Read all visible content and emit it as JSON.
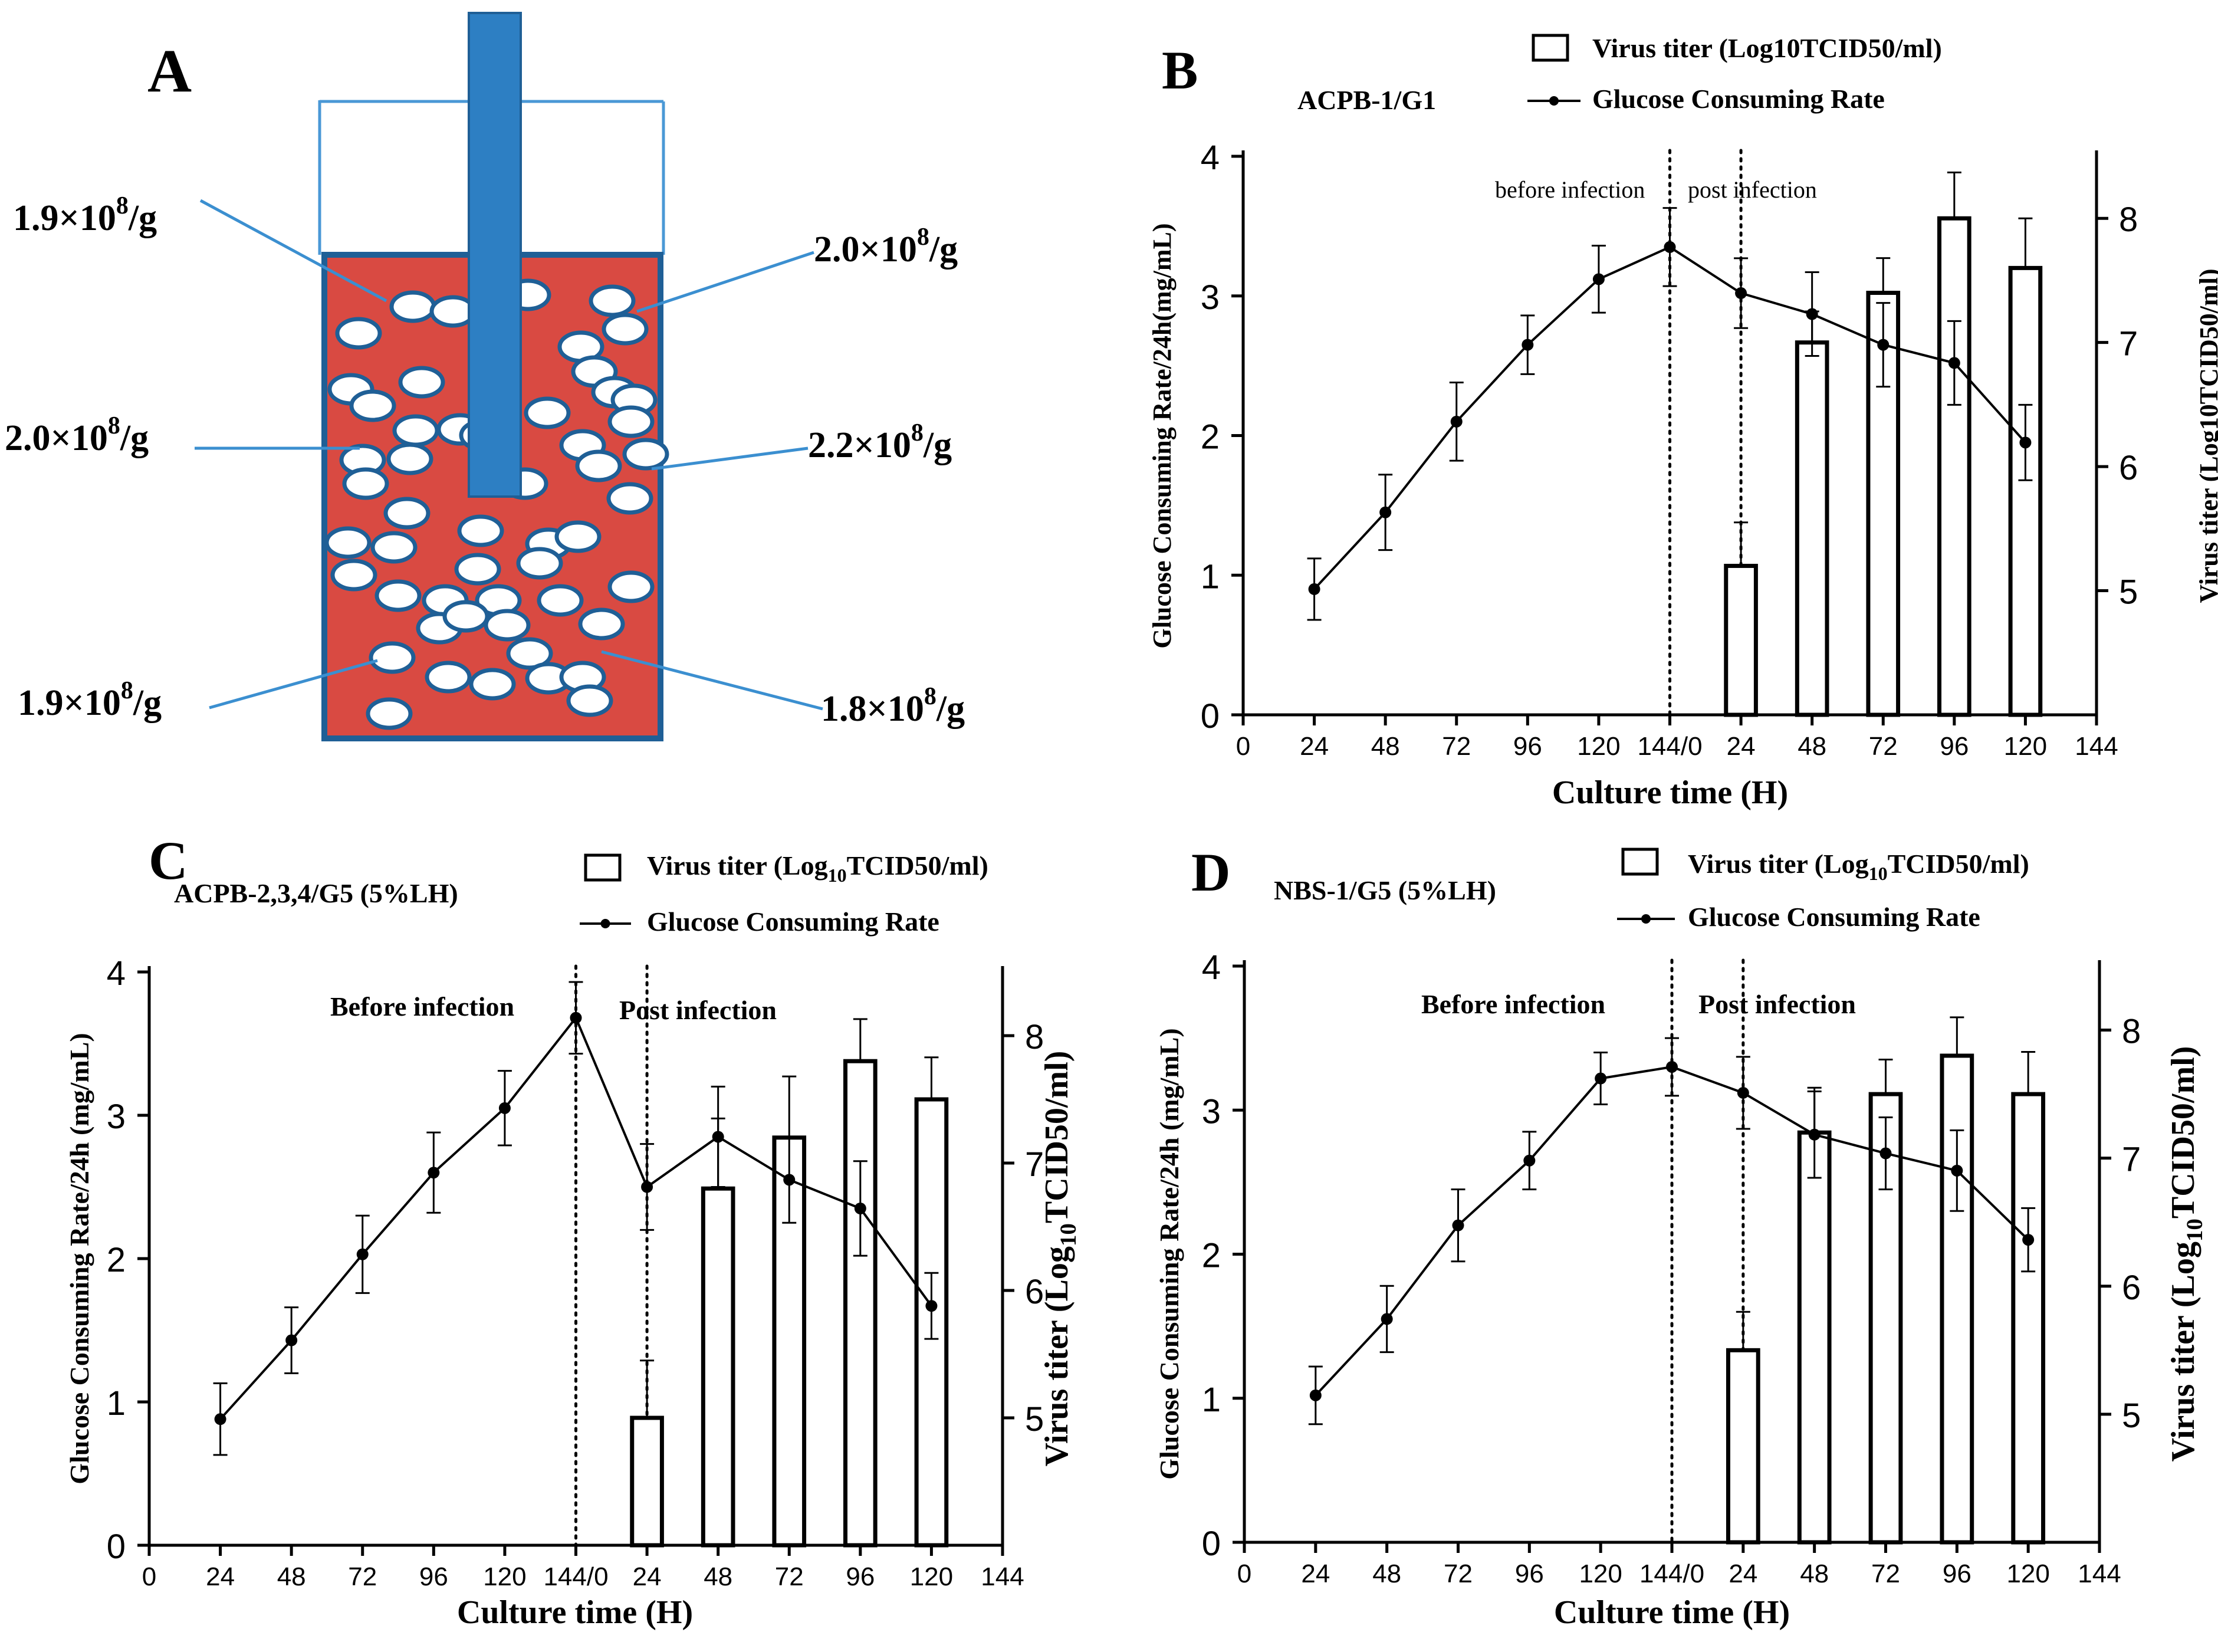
{
  "colors": {
    "reactor_fill": "#d94a42",
    "reactor_border": "#1f5f96",
    "agitator": "#2d7fc3",
    "leader": "#3b8fd0",
    "ink": "#000000"
  },
  "panel_a": {
    "label": "A",
    "annotations": [
      {
        "base": "1.9×10",
        "exp": "8",
        "unit": "/g",
        "position": "left-top"
      },
      {
        "base": "2.0×10",
        "exp": "8",
        "unit": "/g",
        "position": "left-middle"
      },
      {
        "base": "1.9×10",
        "exp": "8",
        "unit": "/g",
        "position": "left-bottom"
      },
      {
        "base": "2.0×10",
        "exp": "8",
        "unit": "/g",
        "position": "right-top"
      },
      {
        "base": "2.2×10",
        "exp": "8",
        "unit": "/g",
        "position": "right-middle"
      },
      {
        "base": "1.8×10",
        "exp": "8",
        "unit": "/g",
        "position": "right-bottom"
      }
    ]
  },
  "chart_data": [
    {
      "id": "B",
      "type": "bar+line",
      "panel_label": "B",
      "title": "ACPB-1/G1",
      "legend": {
        "bar_label": {
          "pre": "Virus titer (Log10TCID50/ml)",
          "sub": "",
          "post": ""
        },
        "line_label": "Glucose Consuming Rate",
        "placement": "top-right"
      },
      "region_labels": [
        "before infection",
        "post infection"
      ],
      "xlabel": "Culture time (H)",
      "x_ticks": [
        "0",
        "24",
        "48",
        "72",
        "96",
        "120",
        "144/0",
        "24",
        "48",
        "72",
        "96",
        "120",
        "144"
      ],
      "x_range": [
        0,
        288
      ],
      "dividers_x": [
        144,
        168
      ],
      "ylabel_left": "Glucose Consuming Rate/24h(mg/mL)",
      "ylabel_right": {
        "pre": "Virus titer (Log10TCID50/ml)",
        "sub": "",
        "post": ""
      },
      "y_left_range": [
        0,
        4
      ],
      "y_left_ticks": [
        "0",
        "1",
        "2",
        "3",
        "4"
      ],
      "y_right_range": [
        4,
        8.5
      ],
      "y_right_ticks": [
        "5",
        "6",
        "7",
        "8"
      ],
      "line": {
        "x": [
          24,
          48,
          72,
          96,
          120,
          144,
          168,
          192,
          216,
          240,
          264
        ],
        "values": [
          0.9,
          1.45,
          2.1,
          2.65,
          3.12,
          3.35,
          3.02,
          2.87,
          2.65,
          2.52,
          1.95
        ],
        "errors": [
          0.22,
          0.27,
          0.28,
          0.21,
          0.24,
          0.28,
          0.25,
          0.3,
          0.3,
          0.3,
          0.27
        ]
      },
      "bars": {
        "x": [
          168,
          192,
          216,
          240,
          264
        ],
        "values": [
          5.2,
          7.0,
          7.4,
          8.0,
          7.6
        ],
        "errors": [
          0.35,
          0.25,
          0.28,
          0.37,
          0.4
        ]
      }
    },
    {
      "id": "C",
      "type": "bar+line",
      "panel_label": "C",
      "title": "ACPB-2,3,4/G5 (5%LH)",
      "legend": {
        "bar_label": {
          "pre": "Virus titer (Log",
          "sub": "10",
          "post": "TCID50/ml)"
        },
        "line_label": "Glucose Consuming Rate",
        "placement": "top-right"
      },
      "region_labels": [
        "Before infection",
        "Post infection"
      ],
      "xlabel": "Culture time (H)",
      "x_ticks": [
        "0",
        "24",
        "48",
        "72",
        "96",
        "120",
        "144/0",
        "24",
        "48",
        "72",
        "96",
        "120",
        "144"
      ],
      "x_range": [
        0,
        288
      ],
      "dividers_x": [
        144,
        168
      ],
      "ylabel_left": "Glucose Consuming Rate/24h (mg/mL)",
      "ylabel_right": {
        "pre": "Virus titer (Log",
        "sub": "10",
        "post": "TCID50/ml)"
      },
      "y_left_range": [
        0,
        4
      ],
      "y_left_ticks": [
        "0",
        "1",
        "2",
        "3",
        "4"
      ],
      "y_right_range": [
        4,
        8.5
      ],
      "y_right_ticks": [
        "5",
        "6",
        "7",
        "8"
      ],
      "line": {
        "x": [
          24,
          48,
          72,
          96,
          120,
          144,
          168,
          192,
          216,
          240,
          264
        ],
        "values": [
          0.88,
          1.43,
          2.03,
          2.6,
          3.05,
          3.68,
          2.5,
          2.85,
          2.55,
          2.35,
          1.67
        ],
        "errors": [
          0.25,
          0.23,
          0.27,
          0.28,
          0.26,
          0.25,
          0.3,
          0.35,
          0.3,
          0.33,
          0.23
        ]
      },
      "bars": {
        "x": [
          168,
          192,
          216,
          240,
          264
        ],
        "values": [
          5.0,
          6.8,
          7.2,
          7.8,
          7.5
        ],
        "errors": [
          0.45,
          0.55,
          0.48,
          0.33,
          0.33
        ]
      }
    },
    {
      "id": "D",
      "type": "bar+line",
      "panel_label": "D",
      "title": "NBS-1/G5 (5%LH)",
      "legend": {
        "bar_label": {
          "pre": "Virus titer (Log",
          "sub": "10",
          "post": "TCID50/ml)"
        },
        "line_label": "Glucose Consuming Rate",
        "placement": "top-right"
      },
      "region_labels": [
        "Before infection",
        "Post infection"
      ],
      "xlabel": "Culture time (H)",
      "x_ticks": [
        "0",
        "24",
        "48",
        "72",
        "96",
        "120",
        "144/0",
        "24",
        "48",
        "72",
        "96",
        "120",
        "144"
      ],
      "x_range": [
        0,
        288
      ],
      "dividers_x": [
        144,
        168
      ],
      "ylabel_left": "Glucose Consuming Rate/24h (mg/mL)",
      "ylabel_right": {
        "pre": "Virus titer (Log",
        "sub": "10",
        "post": "TCID50/ml)"
      },
      "y_left_range": [
        0,
        4
      ],
      "y_left_ticks": [
        "0",
        "1",
        "2",
        "3",
        "4"
      ],
      "y_right_range": [
        4,
        8.5
      ],
      "y_right_ticks": [
        "5",
        "6",
        "7",
        "8"
      ],
      "line": {
        "x": [
          24,
          48,
          72,
          96,
          120,
          144,
          168,
          192,
          216,
          240,
          264
        ],
        "values": [
          1.02,
          1.55,
          2.2,
          2.65,
          3.22,
          3.3,
          3.12,
          2.83,
          2.7,
          2.58,
          2.1
        ],
        "errors": [
          0.2,
          0.23,
          0.25,
          0.2,
          0.18,
          0.2,
          0.25,
          0.3,
          0.25,
          0.28,
          0.22
        ]
      },
      "bars": {
        "x": [
          168,
          192,
          216,
          240,
          264
        ],
        "values": [
          5.5,
          7.2,
          7.5,
          7.8,
          7.5
        ],
        "errors": [
          0.3,
          0.35,
          0.27,
          0.3,
          0.33
        ]
      }
    }
  ]
}
